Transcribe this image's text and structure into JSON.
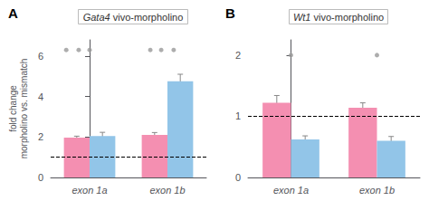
{
  "chart_data": [
    {
      "type": "bar",
      "panel_label": "A",
      "title": "Gata4 vivo-morpholino",
      "ylabel": "fold change\nmorpholino vs. mismatch",
      "categories": [
        "exon 1a",
        "exon 1b"
      ],
      "series": [
        {
          "color": "#F48FB1",
          "values": [
            1.97,
            2.1
          ],
          "errors": [
            0.07,
            0.12
          ]
        },
        {
          "color": "#92C5E8",
          "values": [
            2.05,
            4.75
          ],
          "errors": [
            0.18,
            0.35
          ]
        }
      ],
      "hline": 1,
      "markers": {
        "color": "#999999",
        "points": [
          {
            "x": -0.22,
            "y": 6.3,
            "n": 2
          },
          {
            "x": 0.0,
            "y": 6.3,
            "n": 1
          },
          {
            "x": 0.78,
            "y": 6.3,
            "n": 1
          },
          {
            "x": 1.0,
            "y": 6.3,
            "n": 2
          }
        ]
      },
      "ylim": [
        0,
        6.8
      ],
      "yticks": [
        0,
        2,
        4,
        6
      ],
      "grid": false
    },
    {
      "type": "bar",
      "panel_label": "B",
      "title": "Wt1 vivo-morpholino",
      "categories": [
        "exon 1a",
        "exon 1b"
      ],
      "series": [
        {
          "color": "#F48FB1",
          "values": [
            1.22,
            1.14
          ],
          "errors": [
            0.12,
            0.08
          ]
        },
        {
          "color": "#92C5E8",
          "values": [
            0.62,
            0.6
          ],
          "errors": [
            0.06,
            0.07
          ]
        }
      ],
      "hline": 1,
      "markers": {
        "color": "#999999",
        "points": [
          {
            "x": 0.0,
            "y": 2.0,
            "n": 1
          },
          {
            "x": 1.0,
            "y": 2.0,
            "n": 1
          }
        ]
      },
      "ylim": [
        0,
        2.25
      ],
      "yticks": [
        0,
        1,
        2
      ],
      "grid": false
    }
  ]
}
